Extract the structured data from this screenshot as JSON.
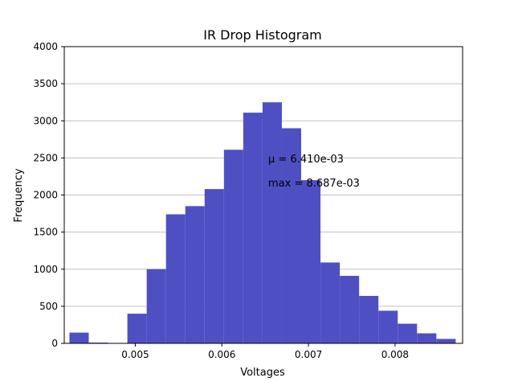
{
  "chart_data": {
    "type": "bar",
    "title": "IR Drop Histogram",
    "xlabel": "Voltages",
    "ylabel": "Frequency",
    "xlim": [
      0.00418,
      0.00878
    ],
    "ylim": [
      0,
      4000
    ],
    "x_ticks": [
      0.005,
      0.006,
      0.007,
      0.008
    ],
    "x_tick_labels": [
      "0.005",
      "0.006",
      "0.007",
      "0.008"
    ],
    "y_ticks": [
      0,
      500,
      1000,
      1500,
      2000,
      2500,
      3000,
      3500,
      4000
    ],
    "y_tick_labels": [
      "0",
      "500",
      "1000",
      "1500",
      "2000",
      "2500",
      "3000",
      "3500",
      "4000"
    ],
    "grid": "horizontal",
    "bar_color": "#4f4fc4",
    "bin_edges": [
      0.00424,
      0.004463,
      0.004686,
      0.004909,
      0.005132,
      0.005355,
      0.005578,
      0.005801,
      0.006024,
      0.006247,
      0.00647,
      0.006693,
      0.006916,
      0.007139,
      0.007362,
      0.007585,
      0.007808,
      0.008031,
      0.008254,
      0.008477,
      0.0087
    ],
    "counts": [
      145,
      10,
      0,
      400,
      1000,
      1740,
      1850,
      2080,
      2610,
      3110,
      3250,
      2900,
      2200,
      1090,
      910,
      640,
      440,
      265,
      135,
      60
    ],
    "annotations": [
      {
        "mean_label": "μ = 6.410e-03"
      },
      {
        "max_label": "max = 8.687e-03"
      }
    ]
  }
}
